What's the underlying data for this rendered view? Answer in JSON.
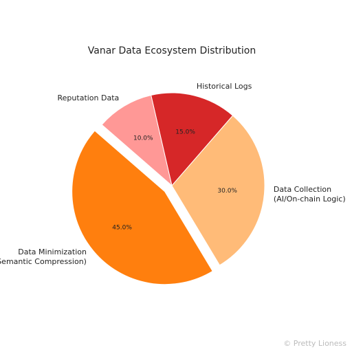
{
  "chart_data": {
    "type": "pie",
    "title": "Vanar Data Ecosystem Distribution",
    "categories": [
      "Historical Logs",
      "Data Collection\n(AI/On-chain Logic)",
      "Data Minimization\n(Semantic Compression)",
      "Reputation Data"
    ],
    "values": [
      15,
      30,
      45,
      10
    ],
    "value_labels": [
      "15.0%",
      "30.0%",
      "45.0%",
      "10.0%"
    ],
    "colors": [
      "#d62728",
      "#ffbb78",
      "#ff7f0e",
      "#ff9896"
    ],
    "explode": [
      0,
      0,
      0.1,
      0
    ]
  },
  "watermark": "© Pretty Lioness"
}
